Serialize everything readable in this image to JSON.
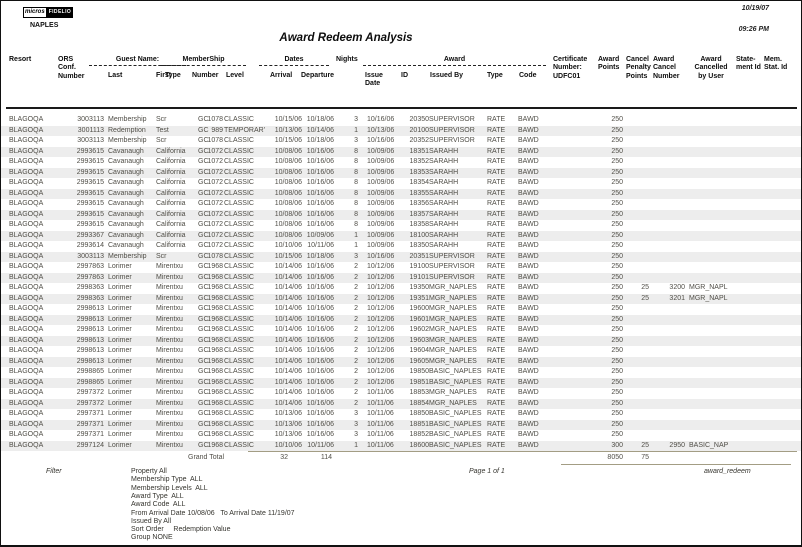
{
  "header": {
    "logo": {
      "left": "micros",
      "right": "FIDELIO"
    },
    "property": "NAPLES",
    "date": "10/19/07",
    "time": "09:26 PM",
    "title": "Award Redeem Analysis"
  },
  "table": {
    "group_headers": [
      {
        "id": "guest",
        "label": "Guest Name:"
      },
      {
        "id": "membership",
        "label": "MemberShip"
      },
      {
        "id": "dates",
        "label": "Dates"
      },
      {
        "id": "award",
        "label": "Award"
      }
    ],
    "column_headers": {
      "resort": "Resort",
      "conf": "ORS\nConf.\nNumber",
      "last": "Last",
      "first": "First",
      "mtype": "Type",
      "mnumber": "Number",
      "mlevel": "Level",
      "arrival": "Arrival",
      "departure": "Departure",
      "nights": "Nights",
      "issue_date": "Issue\nDate",
      "id": "ID",
      "issued_by": "Issued By",
      "atype": "Type",
      "acode": "Code",
      "certificate": "Certificate\nNumber:\nUDFC01",
      "points": "Award\nPoints",
      "penalty": "Cancel\nPenalty\nPoints",
      "cancel_number": "Award\nCancel\nNumber",
      "cancelled_by": "Award\nCancelled\nby User",
      "statement": "State-\nment Id",
      "mem_stat": "Mem.\nStat. Id"
    },
    "rows": [
      [
        "BLAGOQA",
        "3003113",
        "Membership",
        "Scr",
        "GC",
        "1078",
        "CLASSIC",
        "10/15/06",
        "10/18/06",
        "3",
        "10/16/06",
        "20350",
        "SUPERVISOR",
        "RATE",
        "BAWD",
        "250",
        "",
        "",
        ""
      ],
      [
        "BLAGOQA",
        "3001113",
        "Redemption",
        "Test",
        "GC",
        "989",
        "TEMPORAR'",
        "10/13/06",
        "10/14/06",
        "1",
        "10/13/06",
        "20100",
        "SUPERVISOR",
        "RATE",
        "BAWD",
        "250",
        "",
        "",
        ""
      ],
      [
        "BLAGOQA",
        "3003113",
        "Membership",
        "Scr",
        "GC",
        "1078",
        "CLASSIC",
        "10/15/06",
        "10/18/06",
        "3",
        "10/16/06",
        "20352",
        "SUPERVISOR",
        "RATE",
        "BAWD",
        "250",
        "",
        "",
        ""
      ],
      [
        "BLAGOQA",
        "2993615",
        "Cavanaugh",
        "California",
        "GC",
        "1072",
        "CLASSIC",
        "10/08/06",
        "10/16/06",
        "8",
        "10/09/06",
        "18351",
        "SARAHH",
        "RATE",
        "BAWD",
        "250",
        "",
        "",
        ""
      ],
      [
        "BLAGOQA",
        "2993615",
        "Cavanaugh",
        "California",
        "GC",
        "1072",
        "CLASSIC",
        "10/08/06",
        "10/16/06",
        "8",
        "10/09/06",
        "18352",
        "SARAHH",
        "RATE",
        "BAWD",
        "250",
        "",
        "",
        ""
      ],
      [
        "BLAGOQA",
        "2993615",
        "Cavanaugh",
        "California",
        "GC",
        "1072",
        "CLASSIC",
        "10/08/06",
        "10/16/06",
        "8",
        "10/09/06",
        "18353",
        "SARAHH",
        "RATE",
        "BAWD",
        "250",
        "",
        "",
        ""
      ],
      [
        "BLAGOQA",
        "2993615",
        "Cavanaugh",
        "California",
        "GC",
        "1072",
        "CLASSIC",
        "10/08/06",
        "10/16/06",
        "8",
        "10/09/06",
        "18354",
        "SARAHH",
        "RATE",
        "BAWD",
        "250",
        "",
        "",
        ""
      ],
      [
        "BLAGOQA",
        "2993615",
        "Cavanaugh",
        "California",
        "GC",
        "1072",
        "CLASSIC",
        "10/08/06",
        "10/16/06",
        "8",
        "10/09/06",
        "18355",
        "SARAHH",
        "RATE",
        "BAWD",
        "250",
        "",
        "",
        ""
      ],
      [
        "BLAGOQA",
        "2993615",
        "Cavanaugh",
        "California",
        "GC",
        "1072",
        "CLASSIC",
        "10/08/06",
        "10/16/06",
        "8",
        "10/09/06",
        "18356",
        "SARAHH",
        "RATE",
        "BAWD",
        "250",
        "",
        "",
        ""
      ],
      [
        "BLAGOQA",
        "2993615",
        "Cavanaugh",
        "California",
        "GC",
        "1072",
        "CLASSIC",
        "10/08/06",
        "10/16/06",
        "8",
        "10/09/06",
        "18357",
        "SARAHH",
        "RATE",
        "BAWD",
        "250",
        "",
        "",
        ""
      ],
      [
        "BLAGOQA",
        "2993615",
        "Cavanaugh",
        "California",
        "GC",
        "1072",
        "CLASSIC",
        "10/08/06",
        "10/16/06",
        "8",
        "10/09/06",
        "18358",
        "SARAHH",
        "RATE",
        "BAWD",
        "250",
        "",
        "",
        ""
      ],
      [
        "BLAGOQA",
        "2993367",
        "Cavanaugh",
        "California",
        "GC",
        "1072",
        "CLASSIC",
        "10/08/06",
        "10/09/06",
        "1",
        "10/09/06",
        "18100",
        "SARAHH",
        "RATE",
        "BAWD",
        "250",
        "",
        "",
        ""
      ],
      [
        "BLAGOQA",
        "2993614",
        "Cavanaugh",
        "California",
        "GC",
        "1072",
        "CLASSIC",
        "10/10/06",
        "10/11/06",
        "1",
        "10/09/06",
        "18350",
        "SARAHH",
        "RATE",
        "BAWD",
        "250",
        "",
        "",
        ""
      ],
      [
        "BLAGOQA",
        "3003113",
        "Membership",
        "Scr",
        "GC",
        "1078",
        "CLASSIC",
        "10/15/06",
        "10/18/06",
        "3",
        "10/16/06",
        "20351",
        "SUPERVISOR",
        "RATE",
        "BAWD",
        "250",
        "",
        "",
        ""
      ],
      [
        "BLAGOQA",
        "2997863",
        "Lorimer",
        "Mirentxu",
        "GC",
        "1968",
        "CLASSIC",
        "10/14/06",
        "10/16/06",
        "2",
        "10/12/06",
        "19100",
        "SUPERVISOR",
        "RATE",
        "BAWD",
        "250",
        "",
        "",
        ""
      ],
      [
        "BLAGOQA",
        "2997863",
        "Lorimer",
        "Mirentxu",
        "GC",
        "1968",
        "CLASSIC",
        "10/14/06",
        "10/16/06",
        "2",
        "10/12/06",
        "19101",
        "SUPERVISOR",
        "RATE",
        "BAWD",
        "250",
        "",
        "",
        ""
      ],
      [
        "BLAGOQA",
        "2998363",
        "Lorimer",
        "Mirentxu",
        "GC",
        "1968",
        "CLASSIC",
        "10/14/06",
        "10/16/06",
        "2",
        "10/12/06",
        "19350",
        "MGR_NAPLES",
        "RATE",
        "BAWD",
        "250",
        "25",
        "3200",
        "MGR_NAPL"
      ],
      [
        "BLAGOQA",
        "2998363",
        "Lorimer",
        "Mirentxu",
        "GC",
        "1968",
        "CLASSIC",
        "10/14/06",
        "10/16/06",
        "2",
        "10/12/06",
        "19351",
        "MGR_NAPLES",
        "RATE",
        "BAWD",
        "250",
        "25",
        "3201",
        "MGR_NAPL"
      ],
      [
        "BLAGOQA",
        "2998613",
        "Lorimer",
        "Mirentxu",
        "GC",
        "1968",
        "CLASSIC",
        "10/14/06",
        "10/16/06",
        "2",
        "10/12/06",
        "19600",
        "MGR_NAPLES",
        "RATE",
        "BAWD",
        "250",
        "",
        "",
        ""
      ],
      [
        "BLAGOQA",
        "2998613",
        "Lorimer",
        "Mirentxu",
        "GC",
        "1968",
        "CLASSIC",
        "10/14/06",
        "10/16/06",
        "2",
        "10/12/06",
        "19601",
        "MGR_NAPLES",
        "RATE",
        "BAWD",
        "250",
        "",
        "",
        ""
      ],
      [
        "BLAGOQA",
        "2998613",
        "Lorimer",
        "Mirentxu",
        "GC",
        "1968",
        "CLASSIC",
        "10/14/06",
        "10/16/06",
        "2",
        "10/12/06",
        "19602",
        "MGR_NAPLES",
        "RATE",
        "BAWD",
        "250",
        "",
        "",
        ""
      ],
      [
        "BLAGOQA",
        "2998613",
        "Lorimer",
        "Mirentxu",
        "GC",
        "1968",
        "CLASSIC",
        "10/14/06",
        "10/16/06",
        "2",
        "10/12/06",
        "19603",
        "MGR_NAPLES",
        "RATE",
        "BAWD",
        "250",
        "",
        "",
        ""
      ],
      [
        "BLAGOQA",
        "2998613",
        "Lorimer",
        "Mirentxu",
        "GC",
        "1968",
        "CLASSIC",
        "10/14/06",
        "10/16/06",
        "2",
        "10/12/06",
        "19604",
        "MGR_NAPLES",
        "RATE",
        "BAWD",
        "250",
        "",
        "",
        ""
      ],
      [
        "BLAGOQA",
        "2998613",
        "Lorimer",
        "Mirentxu",
        "GC",
        "1968",
        "CLASSIC",
        "10/14/06",
        "10/16/06",
        "2",
        "10/12/06",
        "19605",
        "MGR_NAPLES",
        "RATE",
        "BAWD",
        "250",
        "",
        "",
        ""
      ],
      [
        "BLAGOQA",
        "2998865",
        "Lorimer",
        "Mirentxu",
        "GC",
        "1968",
        "CLASSIC",
        "10/14/06",
        "10/16/06",
        "2",
        "10/12/06",
        "19850",
        "BASIC_NAPLES",
        "RATE",
        "BAWD",
        "250",
        "",
        "",
        ""
      ],
      [
        "BLAGOQA",
        "2998865",
        "Lorimer",
        "Mirentxu",
        "GC",
        "1968",
        "CLASSIC",
        "10/14/06",
        "10/16/06",
        "2",
        "10/12/06",
        "19851",
        "BASIC_NAPLES",
        "RATE",
        "BAWD",
        "250",
        "",
        "",
        ""
      ],
      [
        "BLAGOQA",
        "2997372",
        "Lorimer",
        "Mirentxu",
        "GC",
        "1968",
        "CLASSIC",
        "10/14/06",
        "10/16/06",
        "2",
        "10/11/06",
        "18853",
        "MGR_NAPLES",
        "RATE",
        "BAWD",
        "250",
        "",
        "",
        ""
      ],
      [
        "BLAGOQA",
        "2997372",
        "Lorimer",
        "Mirentxu",
        "GC",
        "1968",
        "CLASSIC",
        "10/14/06",
        "10/16/06",
        "2",
        "10/11/06",
        "18854",
        "MGR_NAPLES",
        "RATE",
        "BAWD",
        "250",
        "",
        "",
        ""
      ],
      [
        "BLAGOQA",
        "2997371",
        "Lorimer",
        "Mirentxu",
        "GC",
        "1968",
        "CLASSIC",
        "10/13/06",
        "10/16/06",
        "3",
        "10/11/06",
        "18850",
        "BASIC_NAPLES",
        "RATE",
        "BAWD",
        "250",
        "",
        "",
        ""
      ],
      [
        "BLAGOQA",
        "2997371",
        "Lorimer",
        "Mirentxu",
        "GC",
        "1968",
        "CLASSIC",
        "10/13/06",
        "10/16/06",
        "3",
        "10/11/06",
        "18851",
        "BASIC_NAPLES",
        "RATE",
        "BAWD",
        "250",
        "",
        "",
        ""
      ],
      [
        "BLAGOQA",
        "2997371",
        "Lorimer",
        "Mirentxu",
        "GC",
        "1968",
        "CLASSIC",
        "10/13/06",
        "10/16/06",
        "3",
        "10/11/06",
        "18852",
        "BASIC_NAPLES",
        "RATE",
        "BAWD",
        "250",
        "",
        "",
        ""
      ],
      [
        "BLAGOQA",
        "2997124",
        "Lorimer",
        "Mirentxu",
        "GC",
        "1968",
        "CLASSIC",
        "10/10/06",
        "10/11/06",
        "1",
        "10/11/06",
        "18600",
        "BASIC_NAPLES",
        "RATE",
        "BAWD",
        "300",
        "25",
        "2950",
        "BASIC_NAP"
      ]
    ],
    "grand_total": {
      "label": "Grand Total",
      "certificates": "32",
      "nights": "114",
      "points": "8050",
      "penalty": "75"
    }
  },
  "footer": {
    "filter_label": "Filter",
    "filters": [
      "Property All",
      "Membership Type  ALL",
      "Membership Levels  ALL",
      "Award Type  ALL",
      "Award Code  ALL",
      "From Arrival Date 10/08/06   To Arrival Date 11/19/07",
      "Issued By All",
      "Sort Order     Redemption Value",
      "Group NONE"
    ],
    "page": "Page 1 of 1",
    "report_id": "award_redeem"
  }
}
